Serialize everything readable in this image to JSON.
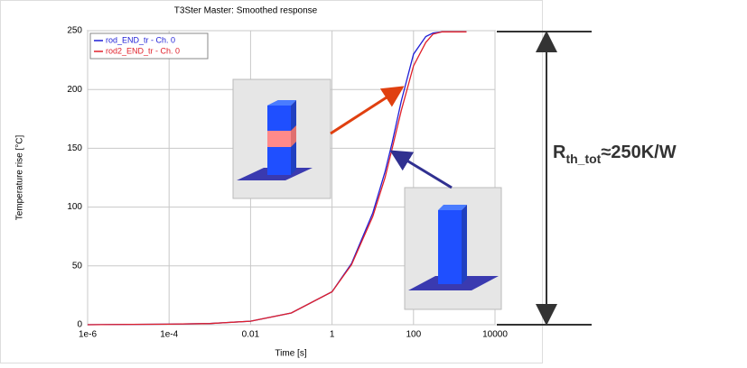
{
  "chart_data": {
    "type": "line",
    "title": "T3Ster Master: Smoothed response",
    "x_label": "Time [s]",
    "y_label": "Temperature rise [°C]",
    "x_scale": "log",
    "x": [
      1e-06,
      0.0001,
      0.001,
      0.01,
      0.1,
      1,
      3,
      10,
      20,
      30,
      50,
      100,
      200,
      300,
      500,
      2000
    ],
    "series": [
      {
        "name": "rod_END_tr - Ch. 0",
        "color": "#1f1fd6",
        "values": [
          0,
          0.5,
          1,
          3,
          10,
          28,
          52,
          95,
          130,
          155,
          190,
          230,
          245,
          248,
          249,
          249
        ]
      },
      {
        "name": "rod2_END_tr - Ch. 0",
        "color": "#e0202a",
        "values": [
          0,
          0.5,
          1,
          3,
          10,
          28,
          51,
          92,
          125,
          150,
          182,
          220,
          240,
          247,
          249,
          249
        ]
      }
    ],
    "xlim": [
      1e-06,
      10000
    ],
    "xticks": [
      {
        "value": 1e-06,
        "label": "1e-6"
      },
      {
        "value": 0.0001,
        "label": "1e-4"
      },
      0.01,
      1,
      100,
      10000
    ],
    "ylim": [
      0,
      250
    ],
    "yticks": [
      0,
      50,
      100,
      150,
      200,
      250
    ],
    "grid": true,
    "legend": "top-left",
    "annotation": {
      "symbol": "R",
      "subscript": "th_tot",
      "text": "≈250K/W"
    }
  }
}
